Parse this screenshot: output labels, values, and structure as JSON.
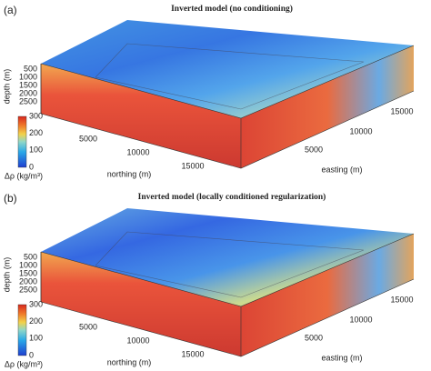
{
  "panels": [
    {
      "label": "(a)",
      "title": "Inverted model (no conditioning)",
      "depth_label": "depth (m)",
      "depth_ticks": [
        500,
        1000,
        1500,
        2000,
        2500
      ],
      "colorbar_ticks": [
        300,
        200,
        100,
        0
      ],
      "colorbar_label": "Δρ (kg/m³)",
      "northing_label": "northing (m)",
      "northing_ticks": [
        5000,
        10000,
        15000
      ],
      "easting_label": "easting (m)",
      "easting_ticks": [
        5000,
        10000,
        15000
      ]
    },
    {
      "label": "(b)",
      "title": "Inverted model (locally conditioned regularization)",
      "depth_label": "depth (m)",
      "depth_ticks": [
        500,
        1000,
        1500,
        2000,
        2500
      ],
      "colorbar_ticks": [
        300,
        200,
        100,
        0
      ],
      "colorbar_label": "Δρ (kg/m³)",
      "northing_label": "northing (m)",
      "northing_ticks": [
        5000,
        10000,
        15000
      ],
      "easting_label": "easting (m)",
      "easting_ticks": [
        5000,
        10000,
        15000
      ]
    }
  ]
}
